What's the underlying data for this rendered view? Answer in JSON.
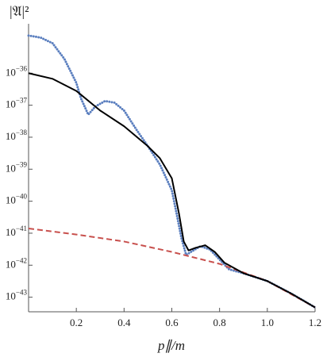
{
  "chart_data": {
    "type": "line",
    "xlabel": "p∥/m",
    "ylabel": "|𝔄|²",
    "xlim": [
      0,
      1.2
    ],
    "ylim": [
      3.5e-44,
      3.5e-35
    ],
    "log_y": true,
    "xticks": [
      0.2,
      0.4,
      0.6,
      0.8,
      {
        "value": 1,
        "label": "1.0"
      },
      1.2
    ],
    "yticks": [
      {
        "value": 1e-36,
        "label": "10−36"
      },
      {
        "value": 1e-37,
        "label": "10−37"
      },
      {
        "value": 1e-38,
        "label": "10−38"
      },
      {
        "value": 1e-39,
        "label": "10−39"
      },
      {
        "value": 1e-40,
        "label": "10−40"
      },
      {
        "value": 1e-41,
        "label": "10−41"
      },
      {
        "value": 1e-42,
        "label": "10−42"
      },
      {
        "value": 1e-43,
        "label": "10−43"
      }
    ],
    "series": [
      {
        "color": "#5b7fbf",
        "style": "dotted",
        "x": [
          0,
          0.05,
          0.1,
          0.15,
          0.2,
          0.22,
          0.25,
          0.28,
          0.32,
          0.36,
          0.4,
          0.45,
          0.5,
          0.55,
          0.6,
          0.62,
          0.64,
          0.66,
          0.68,
          0.72,
          0.76,
          0.8,
          0.84,
          0.9,
          1.0,
          1.1,
          1.2
        ],
        "values": [
          1.5e-35,
          1.3e-35,
          8.7e-36,
          2.8e-36,
          5e-37,
          1.6e-37,
          5.1e-38,
          9.1e-38,
          1.35e-37,
          1.2e-37,
          6.8e-38,
          1.8e-38,
          5.2e-39,
          1.4e-39,
          2.2e-40,
          4.1e-41,
          7.2e-42,
          2.1e-42,
          2.6e-42,
          3.9e-42,
          3.1e-42,
          1.5e-42,
          7.4e-43,
          5.6e-43,
          3.2e-43,
          1.3e-43,
          4.8e-44
        ]
      },
      {
        "color": "#000000",
        "style": "solid",
        "x": [
          0,
          0.1,
          0.2,
          0.3,
          0.4,
          0.5,
          0.55,
          0.6,
          0.63,
          0.65,
          0.67,
          0.7,
          0.74,
          0.78,
          0.82,
          0.9,
          1.0,
          1.1,
          1.2
        ],
        "values": [
          1e-36,
          6.7e-37,
          2.8e-37,
          6.8e-38,
          2.2e-38,
          5.2e-39,
          2.2e-39,
          5.2e-40,
          4.1e-41,
          5.5e-42,
          2.9e-42,
          3.5e-42,
          4.2e-42,
          2.6e-42,
          1.2e-42,
          5.6e-43,
          3.2e-43,
          1.3e-43,
          4.8e-44
        ]
      },
      {
        "color": "#c8504d",
        "style": "dashed",
        "x": [
          0,
          0.2,
          0.4,
          0.6,
          0.8,
          1.0,
          1.2
        ],
        "values": [
          1.4e-41,
          9.1e-42,
          5.5e-42,
          2.6e-42,
          1.1e-42,
          3.2e-43,
          4.8e-44
        ]
      }
    ]
  }
}
